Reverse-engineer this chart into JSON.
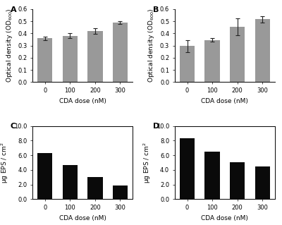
{
  "panel_A": {
    "label": "A",
    "categories": [
      "0",
      "100",
      "200",
      "300"
    ],
    "values": [
      0.36,
      0.38,
      0.42,
      0.49
    ],
    "errors": [
      0.015,
      0.02,
      0.025,
      0.012
    ],
    "bar_color": "#999999",
    "ylabel": "Optical density (OD$_{600}$)",
    "xlabel": "CDA dose (nM)",
    "ylim": [
      0.0,
      0.6
    ],
    "yticks": [
      0.0,
      0.1,
      0.2,
      0.3,
      0.4,
      0.5,
      0.6
    ],
    "has_box": false
  },
  "panel_B": {
    "label": "B",
    "categories": [
      "0",
      "100",
      "200",
      "300"
    ],
    "values": [
      0.295,
      0.345,
      0.455,
      0.515
    ],
    "errors": [
      0.05,
      0.015,
      0.07,
      0.025
    ],
    "bar_color": "#999999",
    "ylabel": "Optical density (OD$_{600}$)",
    "xlabel": "CDA dose (nM)",
    "ylim": [
      0.0,
      0.6
    ],
    "yticks": [
      0.0,
      0.1,
      0.2,
      0.3,
      0.4,
      0.5,
      0.6
    ],
    "has_box": false
  },
  "panel_C": {
    "label": "C",
    "categories": [
      "0",
      "100",
      "200",
      "300"
    ],
    "values": [
      6.3,
      4.7,
      3.0,
      1.9
    ],
    "bar_color": "#0a0a0a",
    "ylabel": "µg EPS / cm$^{2}$",
    "xlabel": "CDA dose (nM)",
    "ylim": [
      0.0,
      10.0
    ],
    "yticks": [
      0.0,
      2.0,
      4.0,
      6.0,
      8.0,
      10.0
    ],
    "has_box": true
  },
  "panel_D": {
    "label": "D",
    "categories": [
      "0",
      "100",
      "200",
      "300"
    ],
    "values": [
      8.3,
      6.5,
      5.0,
      4.5
    ],
    "bar_color": "#0a0a0a",
    "ylabel": "µg EPS / cm$^{2}$",
    "xlabel": "CDA dose (nM)",
    "ylim": [
      0.0,
      10.0
    ],
    "yticks": [
      0.0,
      2.0,
      4.0,
      6.0,
      8.0,
      10.0
    ],
    "has_box": true
  },
  "figure_bg": "#ffffff",
  "bar_width": 0.6,
  "label_fontsize": 6.5,
  "tick_fontsize": 6,
  "panel_label_fontsize": 8,
  "ecolor": "#222222",
  "capsize": 2
}
